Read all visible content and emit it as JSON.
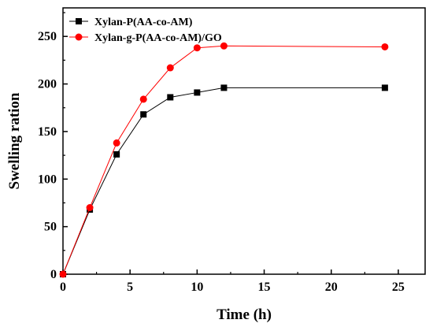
{
  "chart_data": {
    "type": "line",
    "xlabel": "Time (h)",
    "ylabel": "Swelling ration",
    "xlim": [
      0,
      27
    ],
    "ylim": [
      0,
      280
    ],
    "xticks": [
      "0",
      "5",
      "10",
      "15",
      "20",
      "25"
    ],
    "yticks": [
      "0",
      "50",
      "100",
      "150",
      "200",
      "250"
    ],
    "grid": false,
    "legend_position": "top-left",
    "series": [
      {
        "name": "Xylan-P(AA-co-AM)",
        "color": "#000000",
        "marker": "square",
        "x": [
          0,
          2,
          4,
          6,
          8,
          10,
          12,
          24
        ],
        "y": [
          0,
          68,
          126,
          168,
          186,
          191,
          196,
          196
        ]
      },
      {
        "name": "Xylan-g-P(AA-co-AM)/GO",
        "color": "#ff0000",
        "marker": "circle",
        "x": [
          0,
          2,
          4,
          6,
          8,
          10,
          12,
          24
        ],
        "y": [
          0,
          70,
          138,
          184,
          217,
          238,
          240,
          239
        ]
      }
    ]
  }
}
